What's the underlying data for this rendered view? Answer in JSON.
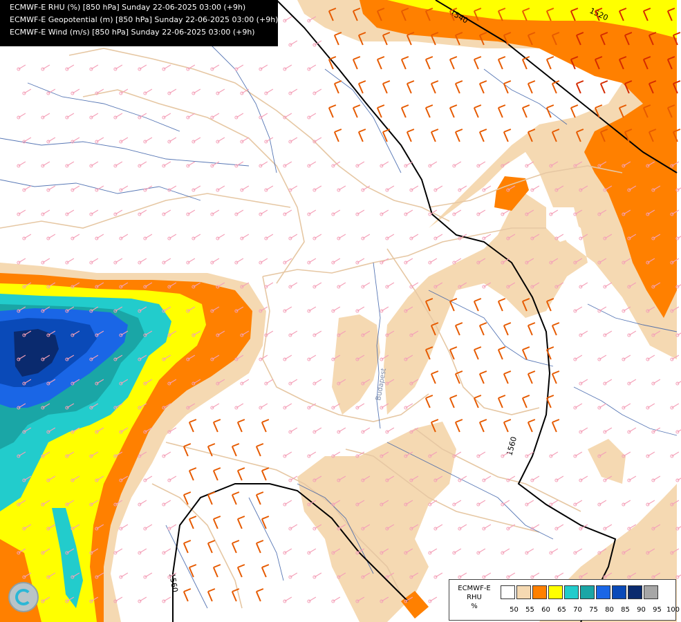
{
  "header": {
    "lines": [
      "ECMWF-E RHU (%) [850 hPa] Sunday 22-06-2025 03:00 (+9h)",
      "ECMWF-E Geopotential (m) [850 hPa] Sunday 22-06-2025 03:00 (+9h)",
      "ECMWF-E Wind (m/s) [850 hPa] Sunday 22-06-2025 03:00 (+9h)"
    ]
  },
  "contour_labels": [
    "1520",
    "1540",
    "1560",
    "1560"
  ],
  "place_labels": [
    "Budapest"
  ],
  "legend": {
    "title_lines": [
      "ECMWF-E",
      "RHU",
      "%"
    ],
    "swatch_colors": [
      "#ffffff",
      "#f5d9b2",
      "#ff8000",
      "#ffff00",
      "#22cccc",
      "#1aa6a6",
      "#1a66e6",
      "#0a4ab8",
      "#0a2a6e",
      "#a6a6a6",
      "#595959"
    ],
    "tick_labels": [
      "50",
      "55",
      "60",
      "65",
      "70",
      "75",
      "80",
      "85",
      "90",
      "95",
      "100"
    ]
  },
  "colors": {
    "rhu_55": "#f5d9b2",
    "rhu_60": "#ff8000",
    "rhu_65": "#ffff00",
    "rhu_70": "#22cccc",
    "rhu_75": "#1aa6a6",
    "rhu_80": "#1a66e6",
    "rhu_85": "#0a4ab8",
    "rhu_90": "#0a2a6e",
    "border": "#e6c7a3",
    "river": "#3a5fa8",
    "barb_calm": "#f4a0b8",
    "barb_strong": "#e65a00",
    "barb_very_strong": "#d42a00",
    "isoline": "#000000"
  },
  "logo_icon": "ecmwf-logo-icon"
}
